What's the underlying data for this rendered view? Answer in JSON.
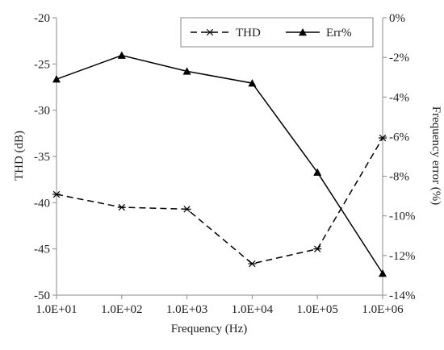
{
  "chart_data": {
    "type": "line",
    "x": [
      10,
      100,
      1000,
      10000,
      100000,
      1000000
    ],
    "x_scale": "log",
    "x_tick_labels": [
      "1.0E+01",
      "1.0E+02",
      "1.0E+03",
      "1.0E+04",
      "1.0E+05",
      "1.0E+06"
    ],
    "xlabel": "Frequency (Hz)",
    "ylabel_left": "THD (dB)",
    "ylabel_right": "Frequency error (%)",
    "ylim_left": [
      -50,
      -20
    ],
    "ylim_right": [
      -14,
      0
    ],
    "y_ticks_left": [
      "-20",
      "-25",
      "-30",
      "-35",
      "-40",
      "-45",
      "-50"
    ],
    "y_ticks_right": [
      "0%",
      "-2%",
      "-4%",
      "-6%",
      "-8%",
      "-10%",
      "-12%",
      "-14%"
    ],
    "legend_position": "top-right",
    "grid": false,
    "series": [
      {
        "name": "THD",
        "axis": "left",
        "line_style": "dashed",
        "marker": "asterisk",
        "color": "#000000",
        "values": [
          -39.1,
          -40.5,
          -40.7,
          -46.6,
          -45.0,
          -33.0
        ]
      },
      {
        "name": "Err%",
        "axis": "right",
        "line_style": "solid",
        "marker": "triangle",
        "color": "#000000",
        "values": [
          -3.1,
          -1.9,
          -2.7,
          -3.3,
          -7.8,
          -12.9
        ]
      }
    ]
  }
}
